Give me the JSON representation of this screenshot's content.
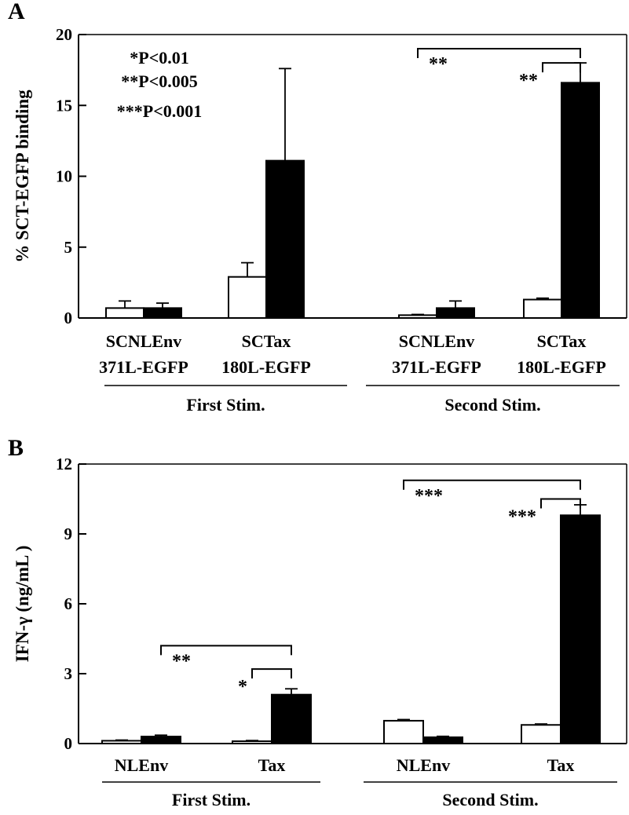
{
  "chart_data": [
    {
      "panel": "A",
      "type": "bar",
      "ylabel": "% SCT-EGFP binding",
      "ylim": [
        0,
        20
      ],
      "yticks": [
        0,
        5,
        10,
        15,
        20
      ],
      "categories": [
        [
          "SCNLEnv",
          "371L-EGFP"
        ],
        [
          "SCTax",
          "180L-EGFP"
        ],
        [
          "SCNLEnv",
          "371L-EGFP"
        ],
        [
          "SCTax",
          "180L-EGFP"
        ]
      ],
      "groups": [
        {
          "label": "First Stim.",
          "categories": [
            0,
            1
          ]
        },
        {
          "label": "Second Stim.",
          "categories": [
            2,
            3
          ]
        }
      ],
      "series": [
        {
          "fill": "open",
          "values": [
            0.7,
            2.9,
            0.2,
            1.3
          ],
          "errors": [
            0.5,
            1.0,
            0.05,
            0.1
          ]
        },
        {
          "fill": "filled",
          "values": [
            0.7,
            11.1,
            0.7,
            16.6
          ],
          "errors": [
            0.35,
            6.5,
            0.5,
            1.4
          ]
        }
      ],
      "annotations": {
        "pvalue_legend": [
          "*P<0.01",
          "**P<0.005",
          "***P<0.001"
        ],
        "brackets": [
          {
            "from": [
              2,
              0
            ],
            "to": [
              3,
              1
            ],
            "label": "**",
            "level": 19.0
          },
          {
            "from": [
              3,
              0
            ],
            "to": [
              3,
              1
            ],
            "label": "**",
            "level": 18.0
          }
        ]
      }
    },
    {
      "panel": "B",
      "type": "bar",
      "ylabel": "IFN-γ (ng/mL )",
      "ylim": [
        0,
        12
      ],
      "yticks": [
        0,
        3,
        6,
        9,
        12
      ],
      "categories": [
        [
          "NLEnv"
        ],
        [
          "Tax"
        ],
        [
          "NLEnv"
        ],
        [
          "Tax"
        ]
      ],
      "groups": [
        {
          "label": "First Stim.",
          "categories": [
            0,
            1
          ]
        },
        {
          "label": "Second Stim.",
          "categories": [
            2,
            3
          ]
        }
      ],
      "series": [
        {
          "fill": "open",
          "values": [
            0.12,
            0.1,
            0.98,
            0.8
          ],
          "errors": [
            0.03,
            0.03,
            0.05,
            0.04
          ]
        },
        {
          "fill": "filled",
          "values": [
            0.3,
            2.1,
            0.27,
            9.8
          ],
          "errors": [
            0.06,
            0.25,
            0.04,
            0.45
          ]
        }
      ],
      "annotations": {
        "brackets": [
          {
            "from": [
              0,
              1
            ],
            "to": [
              1,
              1
            ],
            "label": "**",
            "level": 4.2
          },
          {
            "from": [
              1,
              0
            ],
            "to": [
              1,
              1
            ],
            "label": "*",
            "level": 3.2
          },
          {
            "from": [
              2,
              0
            ],
            "to": [
              3,
              1
            ],
            "label": "***",
            "level": 11.3
          },
          {
            "from": [
              3,
              0
            ],
            "to": [
              3,
              1
            ],
            "label": "***",
            "level": 10.5
          }
        ]
      }
    }
  ]
}
